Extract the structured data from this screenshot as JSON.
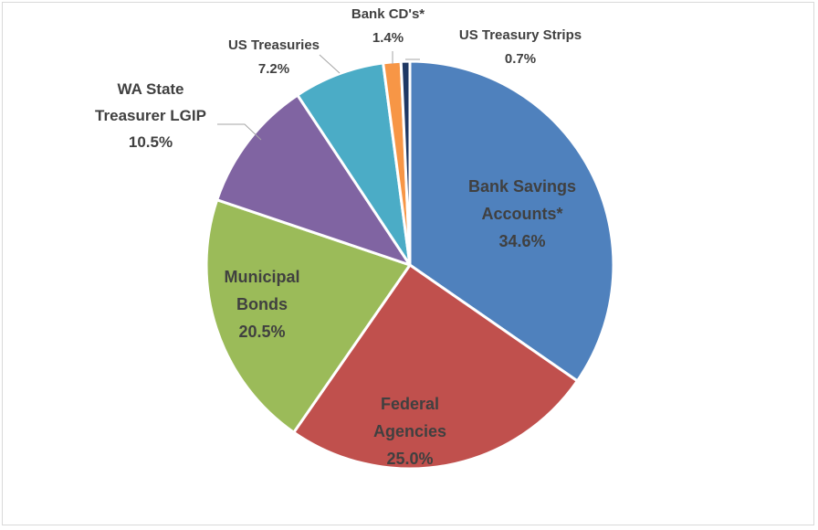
{
  "chart_data": {
    "type": "pie",
    "title": "",
    "slices": [
      {
        "label_lines": [
          "Bank Savings",
          "Accounts*"
        ],
        "value": 34.6,
        "value_label": "34.6%",
        "color": "#4F81BD"
      },
      {
        "label_lines": [
          "Federal",
          "Agencies"
        ],
        "value": 25.0,
        "value_label": "25.0%",
        "color": "#C0504D"
      },
      {
        "label_lines": [
          "Municipal",
          "Bonds"
        ],
        "value": 20.5,
        "value_label": "20.5%",
        "color": "#9BBB59"
      },
      {
        "label_lines": [
          "WA State",
          "Treasurer LGIP"
        ],
        "value": 10.5,
        "value_label": "10.5%",
        "color": "#8064A2"
      },
      {
        "label_lines": [
          "US Treasuries"
        ],
        "value": 7.2,
        "value_label": "7.2%",
        "color": "#4BACC6"
      },
      {
        "label_lines": [
          "Bank CD's*"
        ],
        "value": 1.4,
        "value_label": "1.4%",
        "color": "#F79646"
      },
      {
        "label_lines": [
          "US Treasury Strips"
        ],
        "value": 0.7,
        "value_label": "0.7%",
        "color": "#1F3864"
      }
    ],
    "legend": "none",
    "start_angle": "12 o'clock",
    "direction": "clockwise"
  }
}
